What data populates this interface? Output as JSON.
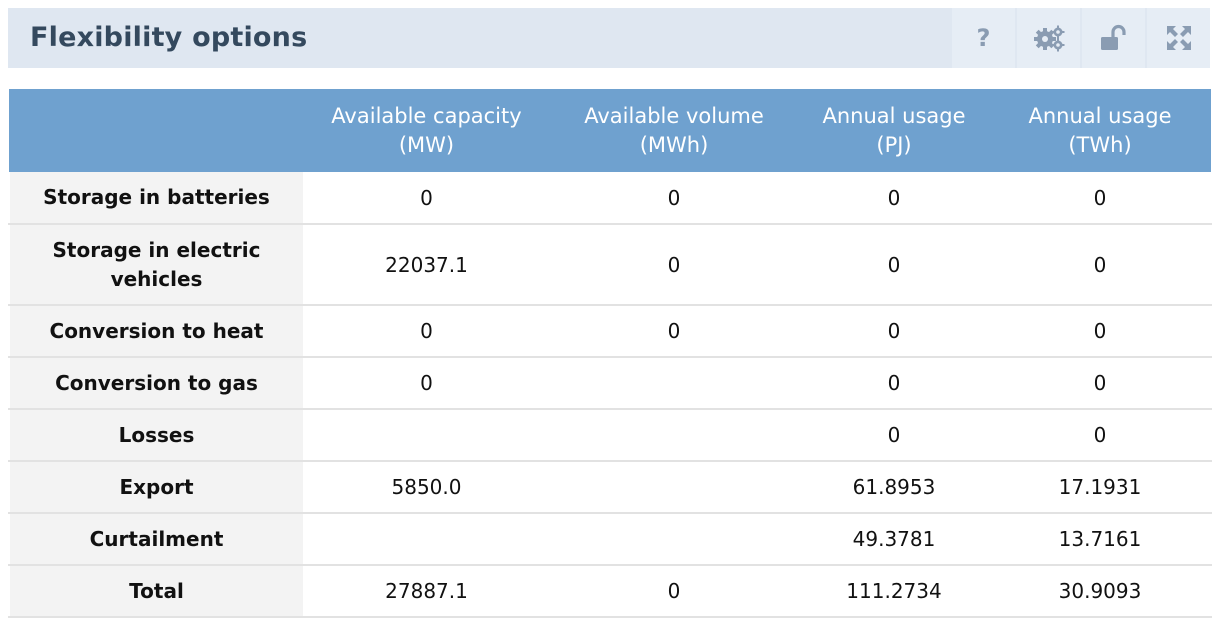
{
  "panel": {
    "title": "Flexibility options",
    "help_label": "?",
    "icons": [
      "help-icon",
      "gear-icon",
      "lock-open-icon",
      "fullscreen-icon"
    ],
    "header_bg": "#dfe7f1",
    "table_header_bg": "#6fa1cf"
  },
  "table": {
    "columns": [
      {
        "line1": "Available capacity",
        "line2": "(MW)"
      },
      {
        "line1": "Available volume",
        "line2": "(MWh)"
      },
      {
        "line1": "Annual usage",
        "line2": "(PJ)"
      },
      {
        "line1": "Annual usage",
        "line2": "(TWh)"
      }
    ],
    "rows": [
      {
        "label": "Storage in batteries",
        "values": [
          "0",
          "0",
          "0",
          "0"
        ]
      },
      {
        "label": "Storage in electric vehicles",
        "values": [
          "22037.1",
          "0",
          "0",
          "0"
        ]
      },
      {
        "label": "Conversion to heat",
        "values": [
          "0",
          "0",
          "0",
          "0"
        ]
      },
      {
        "label": "Conversion to gas",
        "values": [
          "0",
          "",
          "0",
          "0"
        ]
      },
      {
        "label": "Losses",
        "values": [
          "",
          "",
          "0",
          "0"
        ]
      },
      {
        "label": "Export",
        "values": [
          "5850.0",
          "",
          "61.8953",
          "17.1931"
        ]
      },
      {
        "label": "Curtailment",
        "values": [
          "",
          "",
          "49.3781",
          "13.7161"
        ]
      },
      {
        "label": "Total",
        "values": [
          "27887.1",
          "0",
          "111.2734",
          "30.9093"
        ]
      }
    ]
  }
}
